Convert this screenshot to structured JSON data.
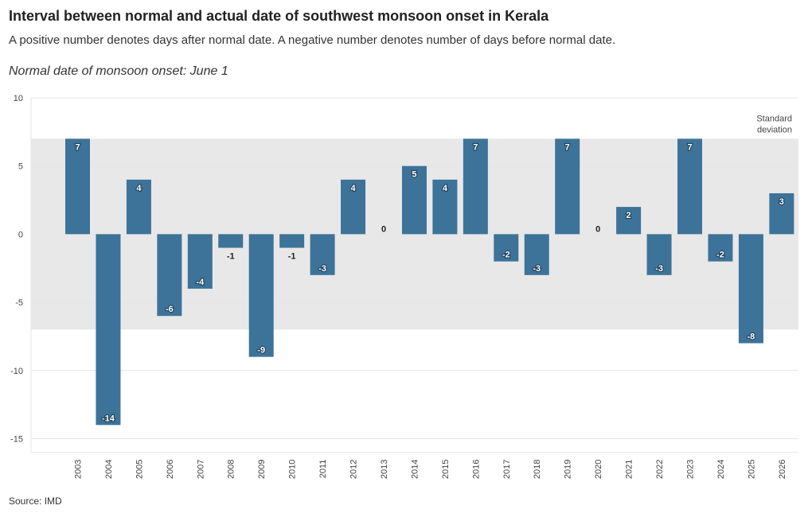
{
  "header": {
    "title": "Interval between normal and actual date of southwest monsoon onset in Kerala",
    "subtitle": "A positive number denotes days after normal date. A negative number denotes number of days before normal date.",
    "note": "Normal date of monsoon onset: June 1"
  },
  "footer": {
    "source": "Source: IMD"
  },
  "colors": {
    "bar": "#3d7399",
    "band": "#e8e8e8",
    "grid": "#e6e6e6",
    "label_inside": "#ffffff",
    "label_outside": "#222222"
  },
  "chart_data": {
    "type": "bar",
    "title": "Interval between normal and actual date of southwest monsoon onset in Kerala",
    "xlabel": "",
    "ylabel": "",
    "ylim": [
      -16,
      10
    ],
    "yticks": [
      10,
      5,
      0,
      -5,
      -10,
      -15
    ],
    "grid": true,
    "categories": [
      "2003",
      "2004",
      "2005",
      "2006",
      "2007",
      "2008",
      "2009",
      "2010",
      "2011",
      "2012",
      "2013",
      "2014",
      "2015",
      "2016",
      "2017",
      "2018",
      "2019",
      "2020",
      "2021",
      "2022",
      "2023",
      "2024",
      "2025",
      "2026"
    ],
    "values": [
      7,
      -14,
      4,
      -6,
      -4,
      -1,
      -9,
      -1,
      -3,
      4,
      0,
      5,
      4,
      7,
      -2,
      -3,
      7,
      0,
      2,
      -3,
      7,
      -2,
      -8,
      3
    ],
    "band": {
      "from": -7,
      "to": 7,
      "label_line1": "Standard",
      "label_line2": "deviation",
      "position": "top-right"
    }
  }
}
